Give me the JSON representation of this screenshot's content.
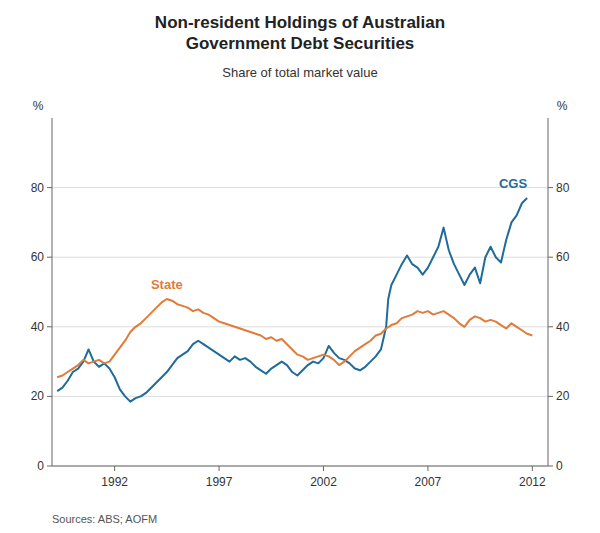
{
  "chart_data": {
    "type": "line",
    "title": "Non-resident Holdings of Australian\nGovernment Debt Securities",
    "subtitle": "Share of total market value",
    "y_label": "%",
    "y2_label": "%",
    "source": "Sources: ABS; AOFM",
    "xlim": [
      1989.0,
      2012.75
    ],
    "xticks": [
      1992,
      1997,
      2002,
      2007,
      2012
    ],
    "ylim": [
      0,
      100
    ],
    "yticks": [
      0,
      20,
      40,
      60,
      80
    ],
    "y2lim": [
      0,
      100
    ],
    "y2ticks": [
      0,
      20,
      40,
      60,
      80
    ],
    "grid": true,
    "series": [
      {
        "name": "CGS",
        "color": "#1f6b9a",
        "x": [
          1989.25,
          1989.5,
          1989.75,
          1990.0,
          1990.25,
          1990.5,
          1990.75,
          1991.0,
          1991.25,
          1991.5,
          1991.75,
          1992.0,
          1992.25,
          1992.5,
          1992.75,
          1993.0,
          1993.25,
          1993.5,
          1993.75,
          1994.0,
          1994.25,
          1994.5,
          1994.75,
          1995.0,
          1995.25,
          1995.5,
          1995.75,
          1996.0,
          1996.25,
          1996.5,
          1996.75,
          1997.0,
          1997.25,
          1997.5,
          1997.75,
          1998.0,
          1998.25,
          1998.5,
          1998.75,
          1999.0,
          1999.25,
          1999.5,
          1999.75,
          2000.0,
          2000.25,
          2000.5,
          2000.75,
          2001.0,
          2001.25,
          2001.5,
          2001.75,
          2002.0,
          2002.25,
          2002.5,
          2002.75,
          2003.0,
          2003.25,
          2003.5,
          2003.75,
          2004.0,
          2004.25,
          2004.5,
          2004.75,
          2005.0,
          2005.1,
          2005.25,
          2005.5,
          2005.75,
          2006.0,
          2006.25,
          2006.5,
          2006.75,
          2007.0,
          2007.25,
          2007.5,
          2007.75,
          2008.0,
          2008.25,
          2008.5,
          2008.75,
          2009.0,
          2009.25,
          2009.5,
          2009.75,
          2010.0,
          2010.25,
          2010.5,
          2010.75,
          2011.0,
          2011.25,
          2011.5,
          2011.75
        ],
        "values": [
          21.5,
          22.5,
          24.5,
          27.0,
          28.0,
          30.0,
          33.5,
          30.0,
          28.5,
          29.5,
          28.0,
          25.5,
          22.0,
          20.0,
          18.5,
          19.5,
          20.0,
          21.0,
          22.5,
          24.0,
          25.5,
          27.0,
          29.0,
          31.0,
          32.0,
          33.0,
          35.0,
          36.0,
          35.0,
          34.0,
          33.0,
          32.0,
          31.0,
          30.0,
          31.5,
          30.5,
          31.0,
          30.0,
          28.5,
          27.5,
          26.5,
          28.0,
          29.0,
          30.0,
          29.0,
          27.0,
          26.0,
          27.5,
          29.0,
          30.0,
          29.5,
          31.0,
          34.5,
          32.5,
          31.0,
          30.5,
          29.5,
          28.0,
          27.5,
          28.5,
          30.0,
          31.5,
          33.5,
          40.0,
          48.0,
          52.0,
          55.0,
          58.0,
          60.5,
          58.0,
          57.0,
          55.0,
          57.0,
          60.0,
          63.0,
          68.5,
          62.0,
          58.0,
          55.0,
          52.0,
          55.0,
          57.0,
          52.5,
          60.0,
          63.0,
          60.0,
          58.5,
          65.0,
          70.0,
          72.0,
          75.5,
          77.0
        ]
      },
      {
        "name": "State",
        "color": "#e07b39",
        "x": [
          1989.25,
          1989.5,
          1989.75,
          1990.0,
          1990.25,
          1990.5,
          1990.75,
          1991.0,
          1991.25,
          1991.5,
          1991.75,
          1992.0,
          1992.25,
          1992.5,
          1992.75,
          1993.0,
          1993.25,
          1993.5,
          1993.75,
          1994.0,
          1994.25,
          1994.5,
          1994.75,
          1995.0,
          1995.25,
          1995.5,
          1995.75,
          1996.0,
          1996.25,
          1996.5,
          1996.75,
          1997.0,
          1997.25,
          1997.5,
          1997.75,
          1998.0,
          1998.25,
          1998.5,
          1998.75,
          1999.0,
          1999.25,
          1999.5,
          1999.75,
          2000.0,
          2000.25,
          2000.5,
          2000.75,
          2001.0,
          2001.25,
          2001.5,
          2001.75,
          2002.0,
          2002.25,
          2002.5,
          2002.75,
          2003.0,
          2003.25,
          2003.5,
          2003.75,
          2004.0,
          2004.25,
          2004.5,
          2004.75,
          2005.0,
          2005.25,
          2005.5,
          2005.75,
          2006.0,
          2006.25,
          2006.5,
          2006.75,
          2007.0,
          2007.25,
          2007.5,
          2007.75,
          2008.0,
          2008.25,
          2008.5,
          2008.75,
          2009.0,
          2009.25,
          2009.5,
          2009.75,
          2010.0,
          2010.25,
          2010.5,
          2010.75,
          2011.0,
          2011.25,
          2011.5,
          2011.75,
          2012.0
        ],
        "values": [
          25.5,
          26.0,
          27.0,
          28.0,
          29.0,
          30.5,
          29.5,
          30.0,
          30.5,
          29.5,
          30.0,
          32.0,
          34.0,
          36.0,
          38.5,
          40.0,
          41.0,
          42.5,
          44.0,
          45.5,
          47.0,
          48.0,
          47.5,
          46.5,
          46.0,
          45.5,
          44.5,
          45.0,
          44.0,
          43.5,
          42.5,
          41.5,
          41.0,
          40.5,
          40.0,
          39.5,
          39.0,
          38.5,
          38.0,
          37.5,
          36.5,
          37.0,
          36.0,
          36.5,
          35.0,
          33.5,
          32.0,
          31.5,
          30.5,
          31.0,
          31.5,
          32.0,
          31.5,
          30.5,
          29.0,
          30.0,
          31.5,
          33.0,
          34.0,
          35.0,
          36.0,
          37.5,
          38.0,
          39.5,
          40.5,
          41.0,
          42.5,
          43.0,
          43.5,
          44.5,
          44.0,
          44.5,
          43.5,
          44.0,
          44.5,
          43.5,
          42.5,
          41.0,
          40.0,
          42.0,
          43.0,
          42.5,
          41.5,
          42.0,
          41.5,
          40.5,
          39.5,
          41.0,
          40.0,
          39.0,
          38.0,
          37.5
        ]
      }
    ]
  }
}
